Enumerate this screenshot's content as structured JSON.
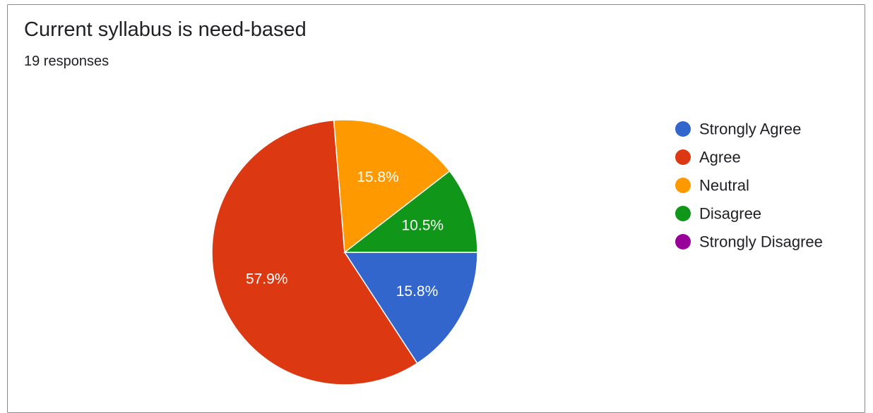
{
  "header": {
    "title": "Current syllabus is need-based",
    "subtitle": "19 responses"
  },
  "chart_data": {
    "type": "pie",
    "title": "Current syllabus is need-based",
    "subtitle": "19 responses",
    "legend_position": "right",
    "slices": [
      {
        "name": "Strongly Agree",
        "value": 15.8,
        "label": "15.8%",
        "color": "#3366cc"
      },
      {
        "name": "Agree",
        "value": 57.9,
        "label": "57.9%",
        "color": "#dc3912"
      },
      {
        "name": "Neutral",
        "value": 15.8,
        "label": "15.8%",
        "color": "#ff9900"
      },
      {
        "name": "Disagree",
        "value": 10.5,
        "label": "10.5%",
        "color": "#109618"
      },
      {
        "name": "Strongly Disagree",
        "value": 0,
        "label": "",
        "color": "#990099"
      }
    ]
  }
}
